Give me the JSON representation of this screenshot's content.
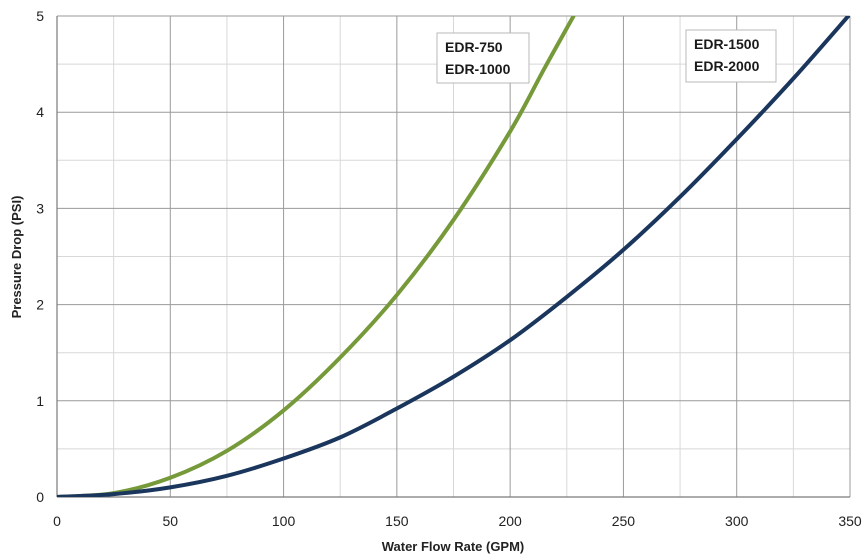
{
  "chart_data": {
    "type": "line",
    "title": "",
    "xlabel": "Water Flow Rate (GPM)",
    "ylabel": "Pressure Drop (PSI)",
    "xlim": [
      0,
      350
    ],
    "ylim": [
      0,
      5
    ],
    "x_major_ticks": [
      0,
      50,
      100,
      150,
      200,
      250,
      300,
      350
    ],
    "x_minor_ticks": [
      25,
      75,
      125,
      175,
      225,
      275,
      325
    ],
    "y_major_ticks": [
      0,
      1,
      2,
      3,
      4,
      5
    ],
    "y_minor_ticks": [
      0.5,
      1.5,
      2.5,
      3.5,
      4.5
    ],
    "grid": true,
    "series": [
      {
        "color": "#76993a",
        "label_lines": [
          "EDR-750",
          "EDR-1000"
        ],
        "points": [
          [
            0,
            0
          ],
          [
            25,
            0.04
          ],
          [
            50,
            0.2
          ],
          [
            75,
            0.48
          ],
          [
            100,
            0.9
          ],
          [
            125,
            1.45
          ],
          [
            150,
            2.1
          ],
          [
            175,
            2.88
          ],
          [
            200,
            3.8
          ],
          [
            215,
            4.45
          ],
          [
            228,
            5.0
          ]
        ]
      },
      {
        "color": "#1a365d",
        "label_lines": [
          "EDR-1500",
          "EDR-2000"
        ],
        "points": [
          [
            0,
            0
          ],
          [
            25,
            0.03
          ],
          [
            50,
            0.1
          ],
          [
            75,
            0.22
          ],
          [
            100,
            0.4
          ],
          [
            125,
            0.62
          ],
          [
            150,
            0.92
          ],
          [
            175,
            1.25
          ],
          [
            200,
            1.63
          ],
          [
            225,
            2.08
          ],
          [
            250,
            2.57
          ],
          [
            275,
            3.12
          ],
          [
            300,
            3.72
          ],
          [
            325,
            4.35
          ],
          [
            350,
            5.02
          ]
        ]
      }
    ]
  }
}
